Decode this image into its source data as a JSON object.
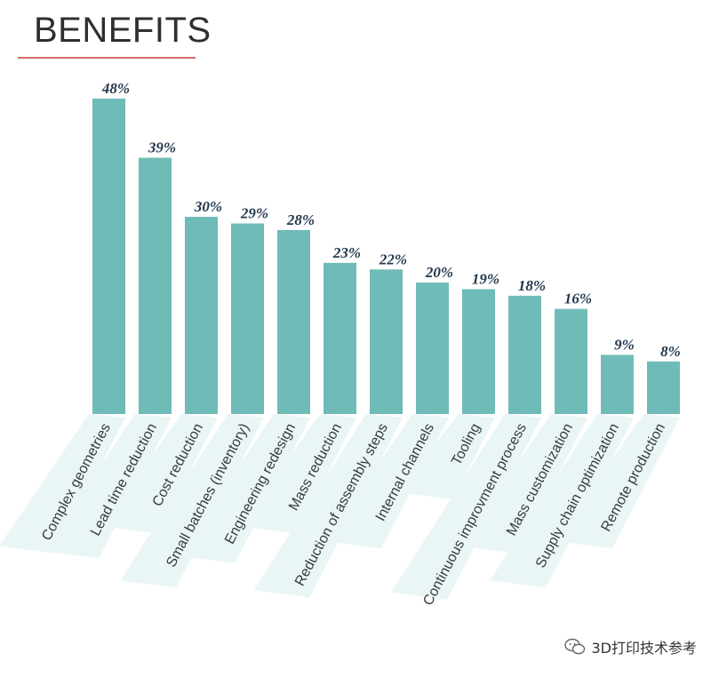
{
  "title": "BENEFITS",
  "watermark": "3D打印技术参考",
  "colors": {
    "bar": "#6fbbb7",
    "value_label": "#23384e",
    "band": "#eaf5f5",
    "rule": "#d36a6a"
  },
  "chart_data": {
    "type": "bar",
    "title": "BENEFITS",
    "xlabel": "",
    "ylabel": "",
    "ylim": [
      0,
      48
    ],
    "categories": [
      "Complex geometries",
      "Lead time reduction",
      "Cost reduction",
      "Small batches (inventory)",
      "Engineering redesign",
      "Mass reduction",
      "Reduction of assembly steps",
      "Internal channels",
      "Tooling",
      "Continuous improvment process",
      "Mass customization",
      "Supply chain optimization",
      "Remote production"
    ],
    "values": [
      48,
      39,
      30,
      29,
      28,
      23,
      22,
      20,
      19,
      18,
      16,
      9,
      8
    ],
    "value_labels": [
      "48%",
      "39%",
      "30%",
      "29%",
      "28%",
      "23%",
      "22%",
      "20%",
      "19%",
      "18%",
      "16%",
      "9%",
      "8%"
    ]
  }
}
